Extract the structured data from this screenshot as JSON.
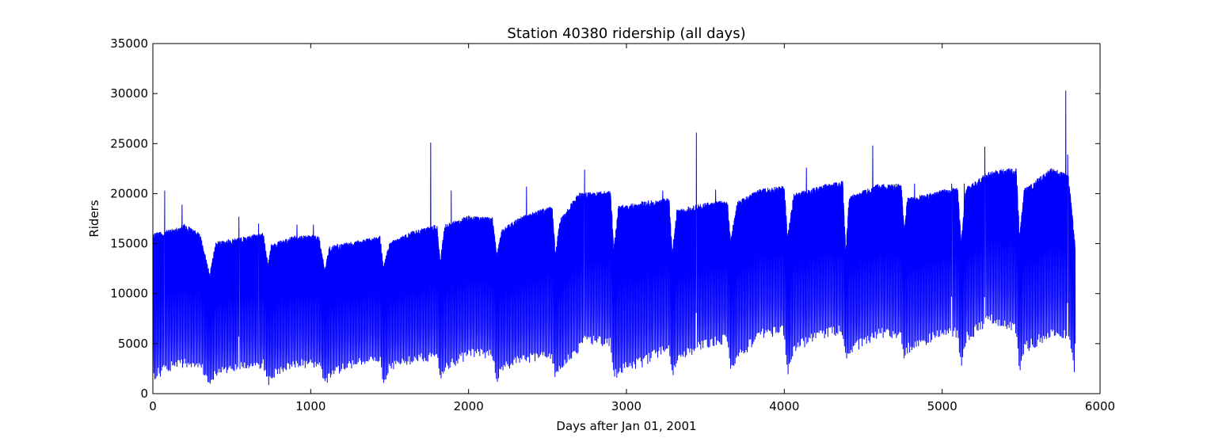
{
  "chart_data": {
    "type": "line",
    "title": "Station 40380 ridership (all days)",
    "xlabel": "Days after Jan 01, 2001",
    "ylabel": "Riders",
    "xlim": [
      0,
      6000
    ],
    "ylim": [
      0,
      35000
    ],
    "xticks": [
      0,
      1000,
      2000,
      3000,
      4000,
      5000,
      6000
    ],
    "yticks": [
      0,
      5000,
      10000,
      15000,
      20000,
      25000,
      30000,
      35000
    ],
    "grid": false,
    "line_color": "#0000ff",
    "series": [
      {
        "x_range": [
          0,
          5843
        ],
        "weekday_upper_envelope": [
          [
            0,
            16000
          ],
          [
            150,
            16600
          ],
          [
            200,
            17000
          ],
          [
            300,
            16000
          ],
          [
            360,
            12000
          ],
          [
            400,
            15200
          ],
          [
            550,
            15600
          ],
          [
            700,
            16100
          ],
          [
            730,
            13000
          ],
          [
            750,
            15000
          ],
          [
            900,
            15800
          ],
          [
            1050,
            15900
          ],
          [
            1090,
            12500
          ],
          [
            1120,
            14800
          ],
          [
            1300,
            15300
          ],
          [
            1440,
            15800
          ],
          [
            1460,
            12700
          ],
          [
            1500,
            15200
          ],
          [
            1650,
            16300
          ],
          [
            1800,
            16900
          ],
          [
            1820,
            13300
          ],
          [
            1850,
            17000
          ],
          [
            2000,
            17800
          ],
          [
            2150,
            17700
          ],
          [
            2180,
            14000
          ],
          [
            2210,
            16500
          ],
          [
            2350,
            17900
          ],
          [
            2530,
            18800
          ],
          [
            2550,
            14100
          ],
          [
            2580,
            17500
          ],
          [
            2700,
            20100
          ],
          [
            2900,
            20300
          ],
          [
            2920,
            14600
          ],
          [
            2950,
            18800
          ],
          [
            3100,
            19200
          ],
          [
            3270,
            19600
          ],
          [
            3290,
            14200
          ],
          [
            3320,
            18500
          ],
          [
            3500,
            19100
          ],
          [
            3640,
            19400
          ],
          [
            3660,
            15400
          ],
          [
            3700,
            19200
          ],
          [
            3850,
            20500
          ],
          [
            4000,
            20800
          ],
          [
            4020,
            15800
          ],
          [
            4060,
            20000
          ],
          [
            4250,
            20900
          ],
          [
            4370,
            21300
          ],
          [
            4390,
            14200
          ],
          [
            4410,
            19700
          ],
          [
            4600,
            21000
          ],
          [
            4740,
            21000
          ],
          [
            4760,
            16700
          ],
          [
            4780,
            19600
          ],
          [
            5000,
            20400
          ],
          [
            5100,
            20600
          ],
          [
            5120,
            15300
          ],
          [
            5150,
            20600
          ],
          [
            5300,
            22300
          ],
          [
            5470,
            22600
          ],
          [
            5490,
            16000
          ],
          [
            5520,
            20500
          ],
          [
            5700,
            22700
          ],
          [
            5800,
            21900
          ],
          [
            5843,
            14900
          ]
        ],
        "weekend_lower_envelope": [
          [
            0,
            1300
          ],
          [
            150,
            2500
          ],
          [
            300,
            2600
          ],
          [
            360,
            500
          ],
          [
            400,
            1700
          ],
          [
            550,
            2200
          ],
          [
            700,
            2500
          ],
          [
            730,
            700
          ],
          [
            760,
            1500
          ],
          [
            900,
            2500
          ],
          [
            1050,
            2600
          ],
          [
            1090,
            700
          ],
          [
            1130,
            1700
          ],
          [
            1300,
            2700
          ],
          [
            1440,
            3100
          ],
          [
            1460,
            600
          ],
          [
            1500,
            2200
          ],
          [
            1650,
            3000
          ],
          [
            1800,
            3300
          ],
          [
            1820,
            900
          ],
          [
            1850,
            2100
          ],
          [
            2000,
            3500
          ],
          [
            2150,
            3500
          ],
          [
            2180,
            1000
          ],
          [
            2210,
            2000
          ],
          [
            2350,
            3000
          ],
          [
            2530,
            3300
          ],
          [
            2550,
            1100
          ],
          [
            2580,
            2200
          ],
          [
            2750,
            5000
          ],
          [
            2900,
            4500
          ],
          [
            2920,
            1200
          ],
          [
            2950,
            1800
          ],
          [
            3100,
            2600
          ],
          [
            3270,
            4300
          ],
          [
            3290,
            1300
          ],
          [
            3320,
            3000
          ],
          [
            3500,
            4500
          ],
          [
            3640,
            5000
          ],
          [
            3660,
            2000
          ],
          [
            3700,
            3000
          ],
          [
            3850,
            5500
          ],
          [
            4000,
            5800
          ],
          [
            4020,
            1500
          ],
          [
            4060,
            4000
          ],
          [
            4250,
            5500
          ],
          [
            4370,
            5800
          ],
          [
            4390,
            3000
          ],
          [
            4410,
            3800
          ],
          [
            4600,
            5500
          ],
          [
            4740,
            5500
          ],
          [
            4760,
            2800
          ],
          [
            4780,
            4000
          ],
          [
            5000,
            5500
          ],
          [
            5100,
            5600
          ],
          [
            5120,
            2000
          ],
          [
            5150,
            5000
          ],
          [
            5300,
            7000
          ],
          [
            5470,
            6000
          ],
          [
            5490,
            1900
          ],
          [
            5520,
            4000
          ],
          [
            5700,
            5500
          ],
          [
            5800,
            5400
          ],
          [
            5843,
            1400
          ]
        ],
        "spikes": [
          [
            75,
            20300
          ],
          [
            185,
            18900
          ],
          [
            545,
            17700
          ],
          [
            670,
            17000
          ],
          [
            913,
            16900
          ],
          [
            1017,
            16900
          ],
          [
            1760,
            25100
          ],
          [
            1890,
            20300
          ],
          [
            2367,
            20700
          ],
          [
            2735,
            22400
          ],
          [
            3230,
            20300
          ],
          [
            3443,
            26100
          ],
          [
            3565,
            20400
          ],
          [
            4140,
            22600
          ],
          [
            4560,
            24800
          ],
          [
            4825,
            21000
          ],
          [
            5060,
            21000
          ],
          [
            5140,
            21000
          ],
          [
            5270,
            24700
          ],
          [
            5783,
            30300
          ],
          [
            5795,
            23900
          ]
        ]
      }
    ]
  }
}
